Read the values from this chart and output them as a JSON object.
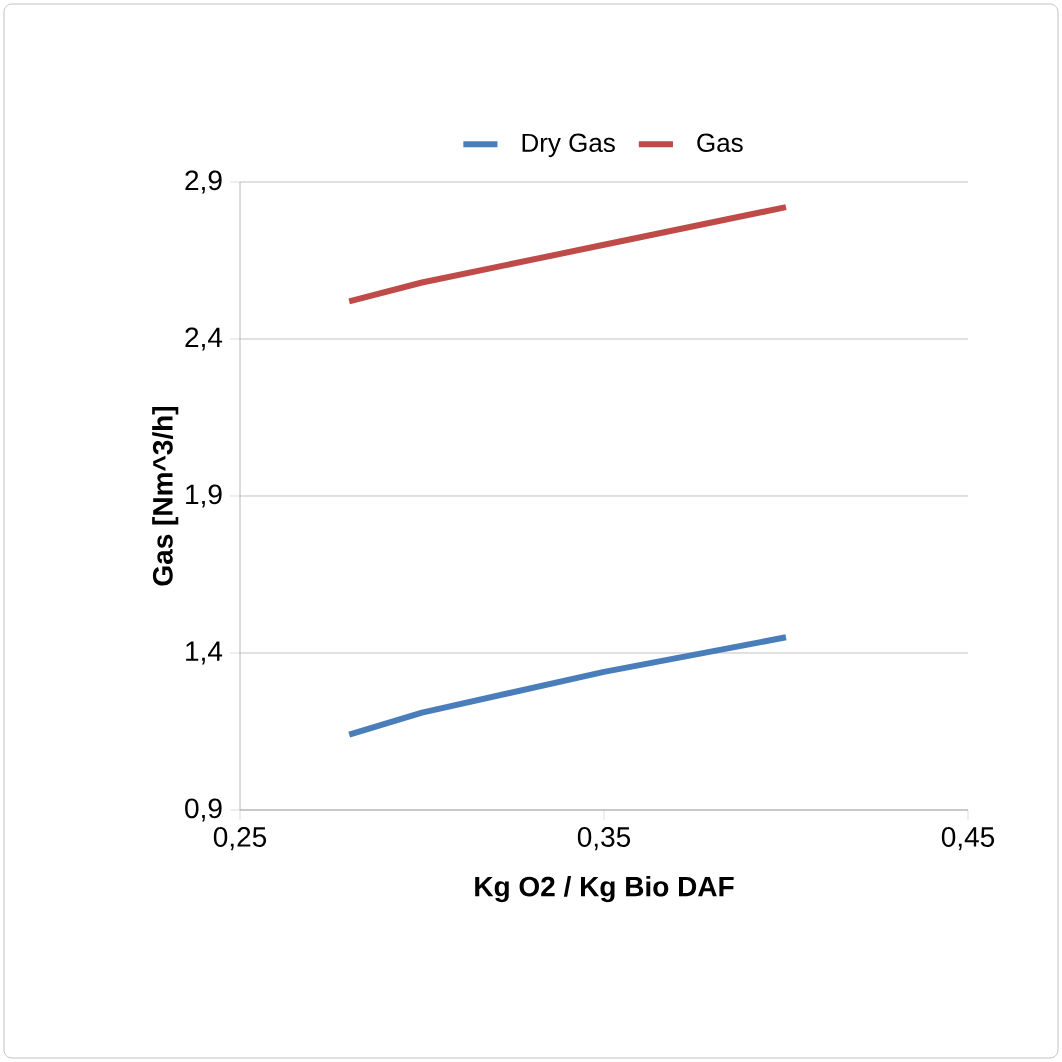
{
  "chart_data": {
    "type": "line",
    "xlabel": "Kg O2 / Kg Bio DAF",
    "ylabel": "Gas [Nm^3/h]",
    "series": [
      {
        "name": "Dry Gas",
        "color": "#4a7ebb",
        "x": [
          0.28,
          0.3,
          0.35,
          0.4
        ],
        "values": [
          1.14,
          1.21,
          1.34,
          1.45
        ]
      },
      {
        "name": "Gas",
        "color": "#be4b48",
        "x": [
          0.28,
          0.3,
          0.35,
          0.4
        ],
        "values": [
          2.52,
          2.58,
          2.7,
          2.82
        ]
      }
    ],
    "xlim": [
      0.25,
      0.45
    ],
    "ylim": [
      0.9,
      2.9
    ],
    "xticks": [
      {
        "value": 0.25,
        "label": "0,25"
      },
      {
        "value": 0.35,
        "label": "0,35"
      },
      {
        "value": 0.45,
        "label": "0,45"
      }
    ],
    "yticks": [
      {
        "value": 0.9,
        "label": "0,9"
      },
      {
        "value": 1.4,
        "label": "1,4"
      },
      {
        "value": 1.9,
        "label": "1,9"
      },
      {
        "value": 2.4,
        "label": "2,4"
      },
      {
        "value": 2.9,
        "label": "2,9"
      }
    ],
    "grid": "y",
    "legend": "top",
    "marker": "none",
    "line_style": "solid"
  }
}
